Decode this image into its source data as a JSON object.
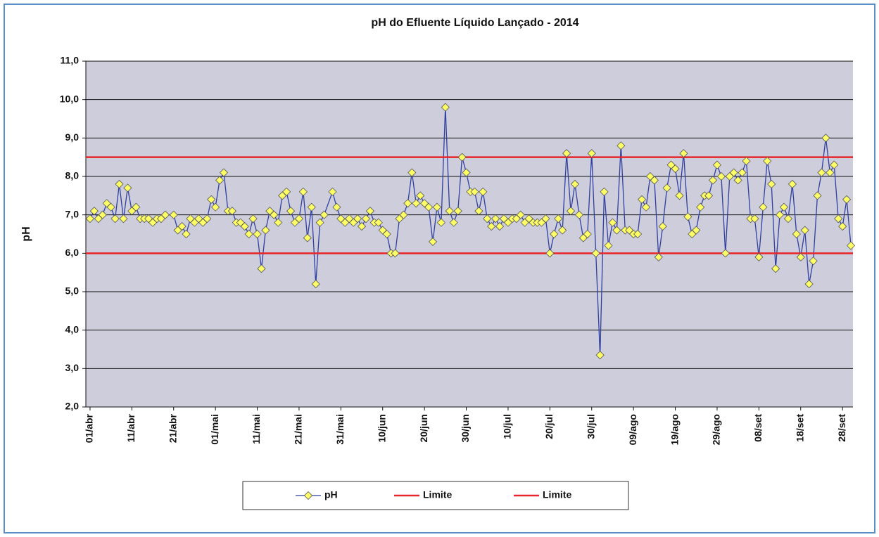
{
  "chart_data": {
    "type": "line",
    "title": "pH do Efluente Líquido Lançado - 2014",
    "y_label": "pH",
    "xlim": [
      -1,
      182.5
    ],
    "ylim": [
      2,
      11
    ],
    "yticks": [
      {
        "value": 2,
        "label": "2,0"
      },
      {
        "value": 3,
        "label": "3,0"
      },
      {
        "value": 4,
        "label": "4,0"
      },
      {
        "value": 5,
        "label": "5,0"
      },
      {
        "value": 6,
        "label": "6,0"
      },
      {
        "value": 7,
        "label": "7,0"
      },
      {
        "value": 8,
        "label": "8,0"
      },
      {
        "value": 9,
        "label": "9,0"
      },
      {
        "value": 10,
        "label": "10,0"
      },
      {
        "value": 11,
        "label": "11,0"
      }
    ],
    "xticks": [
      {
        "value": 0,
        "label": "01/abr"
      },
      {
        "value": 10,
        "label": "11/abr"
      },
      {
        "value": 20,
        "label": "21/abr"
      },
      {
        "value": 30,
        "label": "01/mai"
      },
      {
        "value": 40,
        "label": "11/mai"
      },
      {
        "value": 50,
        "label": "21/mai"
      },
      {
        "value": 60,
        "label": "31/mai"
      },
      {
        "value": 70,
        "label": "10/jun"
      },
      {
        "value": 80,
        "label": "20/jun"
      },
      {
        "value": 90,
        "label": "30/jun"
      },
      {
        "value": 100,
        "label": "10/jul"
      },
      {
        "value": 110,
        "label": "20/jul"
      },
      {
        "value": 120,
        "label": "30/jul"
      },
      {
        "value": 130,
        "label": "09/ago"
      },
      {
        "value": 140,
        "label": "19/ago"
      },
      {
        "value": 150,
        "label": "29/ago"
      },
      {
        "value": 160,
        "label": "08/set"
      },
      {
        "value": 170,
        "label": "18/set"
      },
      {
        "value": 180,
        "label": "28/set"
      }
    ],
    "grid": true,
    "x": [
      0,
      1,
      2,
      3,
      4,
      5,
      6,
      7,
      8,
      9,
      10,
      11,
      12,
      13,
      14,
      15,
      16,
      17,
      18,
      20,
      21,
      22,
      23,
      24,
      25,
      26,
      27,
      28,
      29,
      30,
      31,
      32,
      33,
      34,
      35,
      36,
      37,
      38,
      39,
      40,
      41,
      42,
      43,
      44,
      45,
      46,
      47,
      48,
      49,
      50,
      51,
      52,
      53,
      54,
      55,
      56,
      58,
      59,
      60,
      61,
      62,
      63,
      64,
      65,
      66,
      67,
      68,
      69,
      70,
      71,
      72,
      73,
      74,
      75,
      76,
      77,
      78,
      79,
      80,
      81,
      82,
      83,
      84,
      85,
      86,
      87,
      88,
      89,
      90,
      91,
      92,
      93,
      94,
      95,
      96,
      97,
      98,
      99,
      100,
      101,
      102,
      103,
      104,
      105,
      106,
      107,
      108,
      109,
      110,
      111,
      112,
      113,
      114,
      115,
      116,
      117,
      118,
      119,
      120,
      121,
      122,
      123,
      124,
      125,
      126,
      127,
      128,
      129,
      130,
      131,
      132,
      133,
      134,
      135,
      136,
      137,
      138,
      139,
      140,
      141,
      142,
      143,
      144,
      145,
      146,
      147,
      148,
      149,
      150,
      151,
      152,
      153,
      154,
      155,
      156,
      157,
      158,
      159,
      160,
      161,
      162,
      163,
      164,
      165,
      166,
      167,
      168,
      169,
      170,
      171,
      172,
      173,
      174,
      175,
      176,
      177,
      178,
      179,
      180,
      181,
      182
    ],
    "series": [
      {
        "name": "pH",
        "color": "#2f3f9f",
        "marker_color": "#ffff66",
        "values": [
          6.9,
          7.1,
          6.9,
          7.0,
          7.3,
          7.2,
          6.9,
          7.8,
          6.9,
          7.7,
          7.1,
          7.2,
          6.9,
          6.9,
          6.9,
          6.8,
          6.9,
          6.9,
          7.0,
          7.0,
          6.6,
          6.7,
          6.5,
          6.9,
          6.8,
          6.9,
          6.8,
          6.9,
          7.4,
          7.2,
          7.9,
          8.1,
          7.1,
          7.1,
          6.8,
          6.8,
          6.7,
          6.5,
          6.9,
          6.5,
          5.6,
          6.6,
          7.1,
          7.0,
          6.8,
          7.5,
          7.6,
          7.1,
          6.8,
          6.9,
          7.6,
          6.4,
          7.2,
          5.2,
          6.8,
          7.0,
          7.6,
          7.2,
          6.9,
          6.8,
          6.9,
          6.8,
          6.9,
          6.7,
          6.9,
          7.1,
          6.8,
          6.8,
          6.6,
          6.5,
          6.0,
          6.0,
          6.9,
          7.0,
          7.3,
          8.1,
          7.3,
          7.5,
          7.3,
          7.2,
          6.3,
          7.2,
          6.8,
          9.8,
          7.1,
          6.8,
          7.1,
          8.5,
          8.1,
          7.6,
          7.6,
          7.1,
          7.6,
          6.9,
          6.7,
          6.9,
          6.7,
          6.9,
          6.8,
          6.9,
          6.9,
          7.0,
          6.8,
          6.9,
          6.8,
          6.8,
          6.8,
          6.9,
          6.0,
          6.5,
          6.9,
          6.6,
          8.6,
          7.1,
          7.8,
          7.0,
          6.4,
          6.5,
          8.6,
          6.0,
          3.35,
          7.6,
          6.2,
          6.8,
          6.6,
          8.8,
          6.6,
          6.6,
          6.5,
          6.5,
          7.4,
          7.2,
          8.0,
          7.9,
          5.9,
          6.7,
          7.7,
          8.3,
          8.2,
          7.5,
          8.6,
          6.95,
          6.5,
          6.6,
          7.2,
          7.5,
          7.5,
          7.9,
          8.3,
          8.0,
          6.0,
          8.0,
          8.1,
          7.9,
          8.1,
          8.4,
          6.9,
          6.9,
          5.9,
          7.2,
          8.4,
          7.8,
          5.6,
          7.0,
          7.2,
          6.9,
          7.8,
          6.5,
          5.9,
          6.6,
          5.2,
          5.8,
          7.5,
          8.1,
          9.0,
          8.1,
          8.3,
          6.9,
          6.7,
          7.4,
          6.2
        ]
      },
      {
        "name": "Limite",
        "color": "#e8262a",
        "x": [
          -1,
          182.5
        ],
        "values": [
          8.5,
          8.5
        ]
      },
      {
        "name": "Limite",
        "color": "#e8262a",
        "x": [
          -1,
          182.5
        ],
        "values": [
          6.0,
          6.0
        ]
      }
    ]
  }
}
